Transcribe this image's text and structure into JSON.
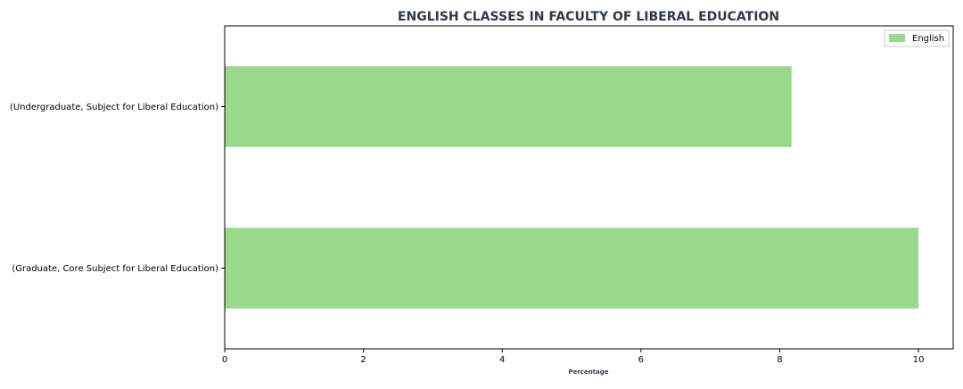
{
  "chart_data": {
    "type": "bar",
    "orientation": "horizontal",
    "title": "ENGLISH CLASSES IN FACULTY OF LIBERAL EDUCATION",
    "xlabel": "Percentage",
    "ylabel": "",
    "categories": [
      "(Undergraduate, Subject for Liberal Education)",
      "(Graduate, Core Subject for Liberal Education)"
    ],
    "series": [
      {
        "name": "English",
        "values": [
          8.17,
          10.0
        ],
        "color": "#9ad98b"
      }
    ],
    "xlim": [
      0,
      10.5
    ],
    "xticks": [
      0,
      2,
      4,
      6,
      8,
      10
    ],
    "grid": false,
    "legend_position": "top-right"
  }
}
